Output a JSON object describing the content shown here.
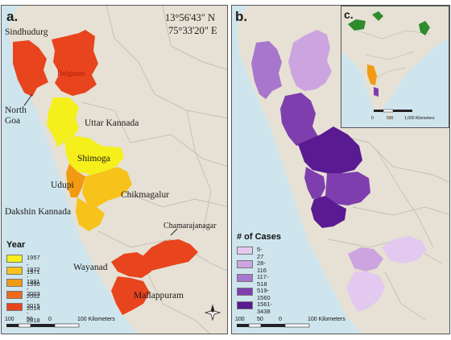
{
  "panel_a": {
    "letter": "a.",
    "coordinates": {
      "lat": "13°56'43\" N",
      "lon": "75°33'20\" E"
    },
    "places": {
      "sindhudurg": "Sindhudurg",
      "belgaum": "Belgaum",
      "north_goa": "North\nGoa",
      "uttar_kannada": "Uttar Kannada",
      "shimoga": "Shimoga",
      "udupi": "Udupi",
      "chikmagalur": "Chikmagalur",
      "dakshin_kannada": "Dakshin Kannada",
      "chamarajanagar": "Chamarajanagar",
      "wayanad": "Wayanad",
      "mallappuram": "Mallappuram"
    },
    "legend": {
      "title": "Year",
      "items": [
        {
          "label": "1957 - 1971",
          "color": "#f5ef1c"
        },
        {
          "label": "1972 - 1990",
          "color": "#f7c21a"
        },
        {
          "label": "1991 - 2002",
          "color": "#f29a12"
        },
        {
          "label": "2003 - 2014",
          "color": "#ef6a19"
        },
        {
          "label": "2015 - 2018",
          "color": "#e8441d"
        }
      ]
    },
    "scale_bar": {
      "ticks": [
        "100",
        "50",
        "0"
      ],
      "unit_label": "100 Kilometers"
    }
  },
  "panel_b": {
    "letter": "b.",
    "legend": {
      "title": "# of Cases",
      "items": [
        {
          "label": "5-27",
          "color": "#e3c9ef"
        },
        {
          "label": "28-116",
          "color": "#cca5e0"
        },
        {
          "label": "117-518",
          "color": "#a876cc"
        },
        {
          "label": "519-1560",
          "color": "#7f3eae"
        },
        {
          "label": "1561-3438",
          "color": "#5a1a91"
        }
      ]
    },
    "scale_bar": {
      "ticks": [
        "100",
        "50",
        "0"
      ],
      "unit_label": "100 Kilometers"
    }
  },
  "panel_c": {
    "letter": "c.",
    "scale_bar": {
      "ticks": [
        "0",
        "500",
        "1,000 Kilometers"
      ]
    }
  },
  "colors": {
    "land": "#e6e1d4",
    "sea": "#cfe5ee",
    "border": "#b9b4a8"
  }
}
